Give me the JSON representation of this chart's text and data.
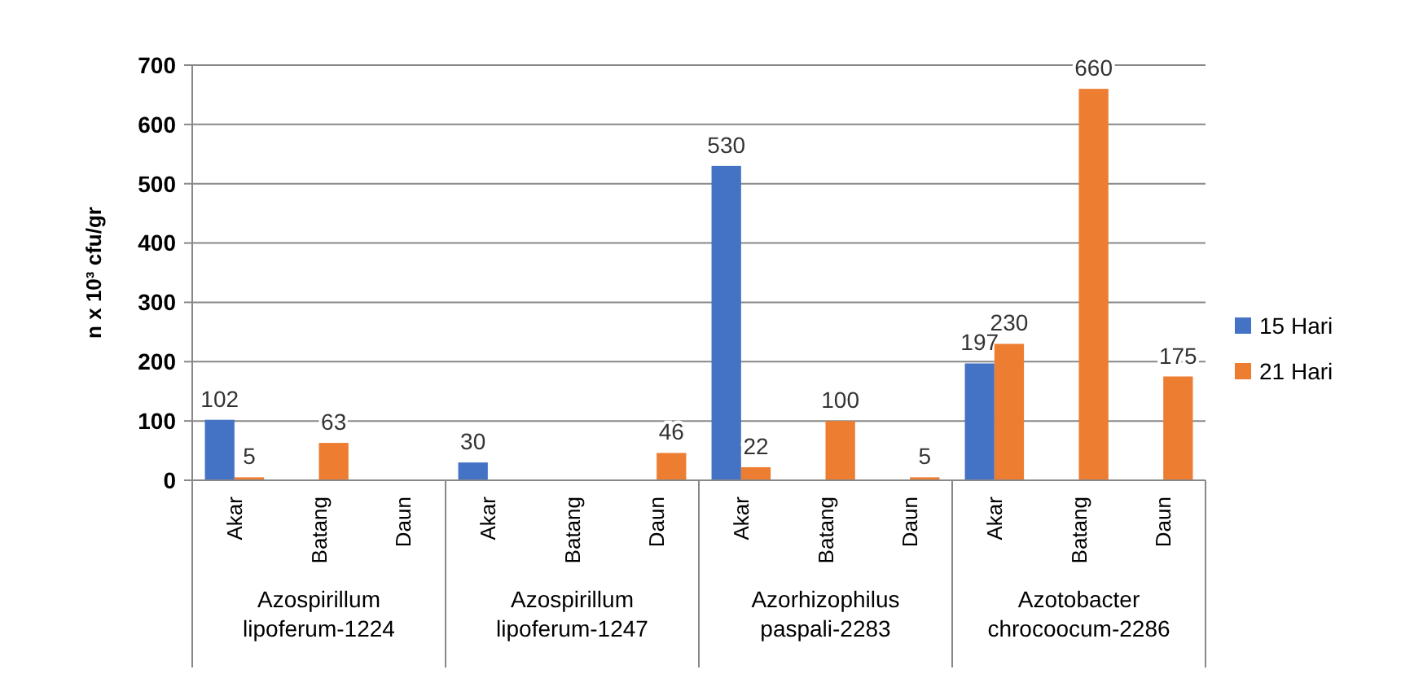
{
  "chart_data": {
    "type": "bar",
    "ylabel": "n x 10³ cfu/gr",
    "categories": [
      "Akar",
      "Batang",
      "Daun",
      "Akar",
      "Batang",
      "Daun",
      "Akar",
      "Batang",
      "Daun",
      "Akar",
      "Batang",
      "Daun"
    ],
    "series": [
      {
        "name": "15 Hari",
        "color": "#4472c4",
        "values": [
          102,
          null,
          null,
          30,
          null,
          null,
          530,
          null,
          null,
          197,
          null,
          null
        ]
      },
      {
        "name": "21 Hari",
        "color": "#ed7d31",
        "values": [
          5,
          63,
          null,
          null,
          null,
          46,
          22,
          100,
          5,
          230,
          660,
          175
        ]
      }
    ],
    "annotations": [
      "Azospirillum lipoferum-1224",
      "Azospirillum lipoferum-1247",
      "Azorhizophilus paspali-2283",
      "Azotobacter chrocoocum-2286"
    ],
    "ylim": [
      0,
      700
    ],
    "yticks": [
      0,
      100,
      200,
      300,
      400,
      500,
      600,
      700
    ],
    "grid": "y",
    "legend": "right",
    "data_labels": true
  }
}
